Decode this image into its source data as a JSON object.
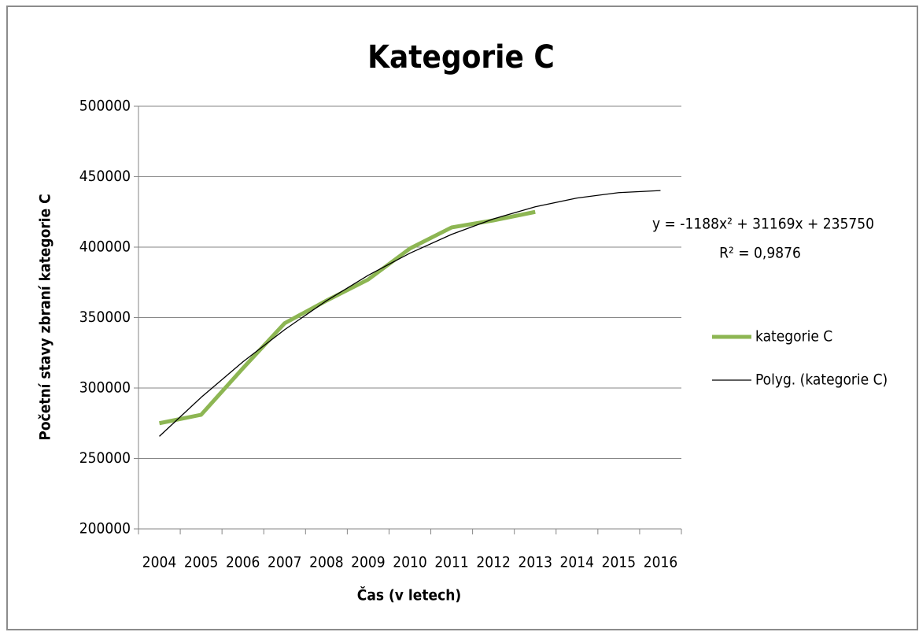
{
  "chart_data": {
    "type": "line",
    "title": "Kategorie C",
    "x_label": "Čas (v letech)",
    "y_label": "Početní stavy zbraní kategorie C",
    "categories": [
      "2004",
      "2005",
      "2006",
      "2007",
      "2008",
      "2009",
      "2010",
      "2011",
      "2012",
      "2013",
      "2014",
      "2015",
      "2016"
    ],
    "series": [
      {
        "name": "kategorie C",
        "color": "#8db653",
        "values": [
          275000,
          281000,
          314000,
          346000,
          362000,
          377000,
          399000,
          414000,
          419000,
          425000,
          null,
          null,
          null
        ]
      },
      {
        "name": "Polyg. (kategorie C)",
        "color": "#000000",
        "values": [
          265731,
          293336,
          318565,
          341418,
          361895,
          379996,
          395721,
          409070,
          420043,
          428640,
          434861,
          438706,
          440175
        ]
      }
    ],
    "ylim": [
      200000,
      500000
    ],
    "yticks": [
      200000,
      250000,
      300000,
      350000,
      400000,
      450000,
      500000
    ],
    "grid": true,
    "legend": "right",
    "annotations": [
      "y = -1188x² + 31169x + 235750",
      "R² = 0,9876"
    ]
  }
}
